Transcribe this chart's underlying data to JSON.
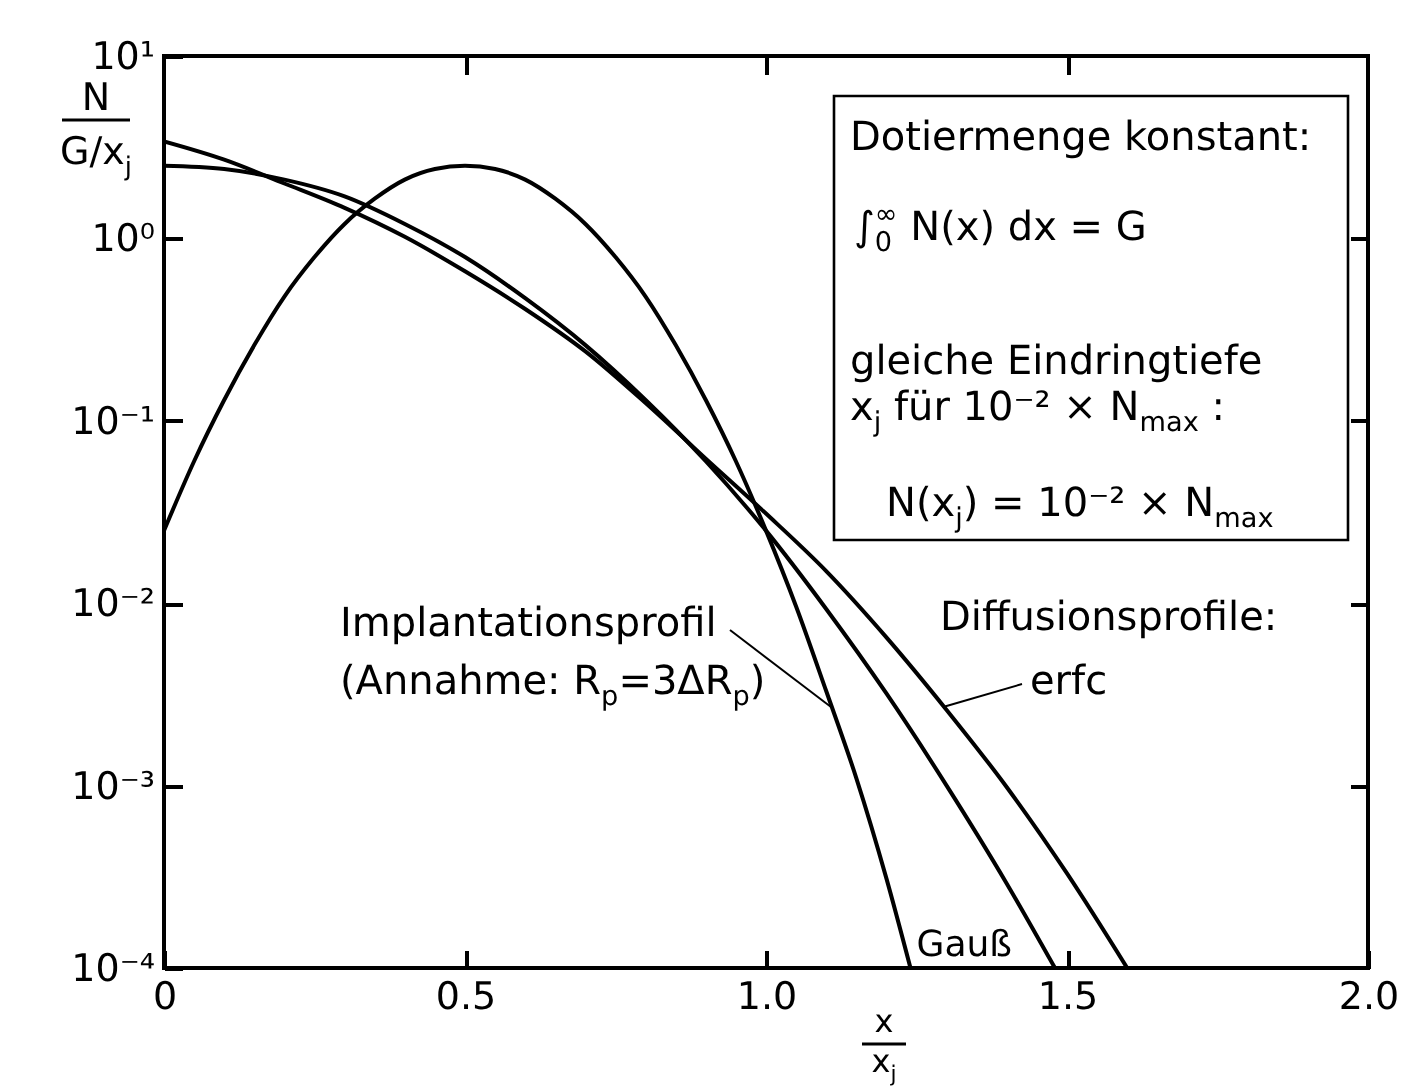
{
  "chart_data": {
    "type": "line",
    "xlabel": "x\nx$_{j}$",
    "ylabel": "N\nG/x$_{j}$",
    "annotations": [
      "Dotiermenge konstant:",
      "∫$_{0}$$^{∞}$ N(x) dx = G",
      "gleiche Eindringtiefe",
      "x$_{j}$ für 10⁻² × N$_{max}$ :",
      "N(x$_{j}$) = 10⁻² × N$_{max}$",
      "Diffusionsprofile:"
    ],
    "series": [
      {
        "name": "Implantationsprofil\n(Annahme: R$_{p}$=3ΔR$_{p}$)",
        "color": "#000000",
        "x": [
          0,
          0.05,
          0.1,
          0.15,
          0.2,
          0.25,
          0.3,
          0.35,
          0.4,
          0.45,
          0.5,
          0.55,
          0.6,
          0.65,
          0.7,
          0.75,
          0.8,
          0.85,
          0.9,
          0.95,
          1.0,
          1.05,
          1.1,
          1.15,
          1.2,
          1.24
        ],
        "values": [
          0.025,
          0.06,
          0.13,
          0.26,
          0.48,
          0.79,
          1.2,
          1.65,
          2.1,
          2.4,
          2.5,
          2.4,
          2.1,
          1.65,
          1.2,
          0.79,
          0.48,
          0.26,
          0.13,
          0.06,
          0.025,
          0.0096,
          0.0033,
          0.0011,
          0.00031,
          0.0001
        ]
      },
      {
        "name": "erfc",
        "color": "#000000",
        "x": [
          0,
          0.1,
          0.2,
          0.3,
          0.4,
          0.5,
          0.6,
          0.7,
          0.8,
          0.9,
          1.0,
          1.1,
          1.2,
          1.3,
          1.4,
          1.5,
          1.6
        ],
        "values": [
          3.4,
          2.7,
          2.0,
          1.47,
          1.02,
          0.66,
          0.41,
          0.24,
          0.125,
          0.062,
          0.031,
          0.015,
          0.0065,
          0.0026,
          0.00098,
          0.00033,
          0.0001
        ]
      },
      {
        "name": "Gauß",
        "color": "#000000",
        "x": [
          0,
          0.1,
          0.2,
          0.3,
          0.4,
          0.5,
          0.6,
          0.7,
          0.8,
          0.9,
          1.0,
          1.1,
          1.2,
          1.3,
          1.4,
          1.48
        ],
        "values": [
          2.5,
          2.4,
          2.1,
          1.7,
          1.2,
          0.79,
          0.47,
          0.26,
          0.13,
          0.06,
          0.025,
          0.0093,
          0.0032,
          0.001,
          0.00029,
          0.0001
        ]
      }
    ],
    "xlim": [
      0,
      2
    ],
    "xticks": [
      0,
      0.5,
      {
        "value": 1,
        "label": "1.0"
      },
      1.5,
      {
        "value": 2,
        "label": "2.0"
      }
    ],
    "ylim": [
      0.0001,
      10
    ],
    "yticks": [
      {
        "value": 10,
        "label": "10¹"
      },
      {
        "value": 1,
        "label": "10⁰"
      },
      {
        "value": 0.1,
        "label": "10⁻¹"
      },
      {
        "value": 0.01,
        "label": "10⁻²"
      },
      {
        "value": 0.001,
        "label": "10⁻³"
      },
      {
        "value": 0.0001,
        "label": "10⁻⁴"
      }
    ],
    "log": "y"
  }
}
